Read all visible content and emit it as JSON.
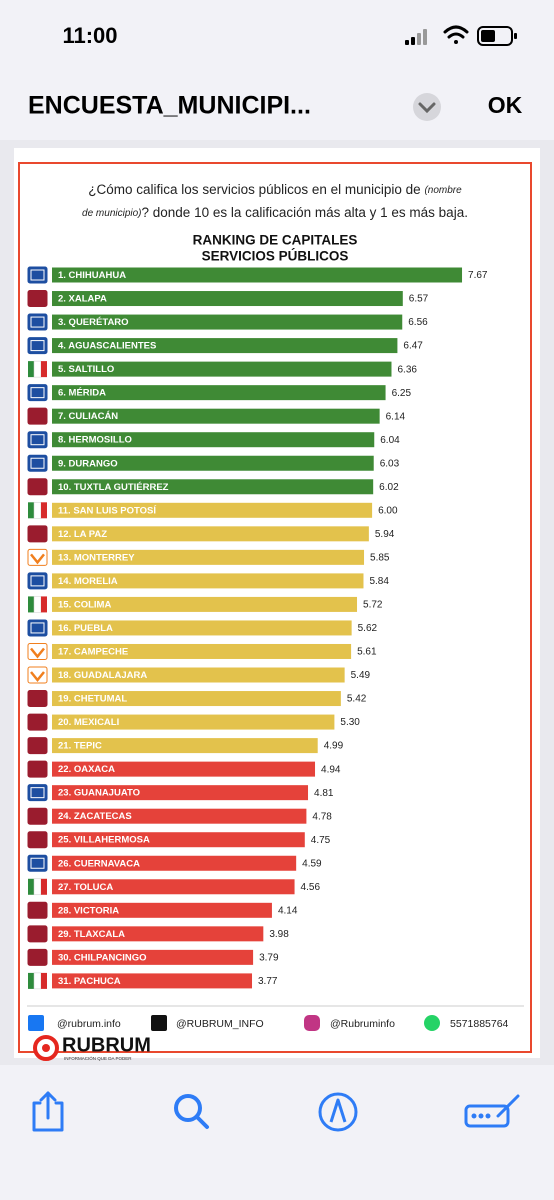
{
  "status_bar": {
    "time": "11:00"
  },
  "header": {
    "title": "ENCUESTA_MUNICIPI...",
    "done": "OK"
  },
  "question": {
    "part1": "¿Cómo califica los servicios públicos en el municipio de",
    "placeholder1": "(nombre",
    "placeholder2": "de municipio)",
    "part2": "? donde 10 es la calificación más alta y 1 es más baja."
  },
  "chart_data": {
    "type": "bar",
    "title": [
      "RANKING DE CAPITALES",
      "SERVICIOS PÚBLICOS"
    ],
    "categories": [
      "1. CHIHUAHUA",
      "2. XALAPA",
      "3. QUERÉTARO",
      "4. AGUASCALIENTES",
      "5. SALTILLO",
      "6. MÉRIDA",
      "7. CULIACÁN",
      "8. HERMOSILLO",
      "9. DURANGO",
      "10. TUXTLA GUTIÉRREZ",
      "11. SAN LUIS POTOSÍ",
      "12. LA PAZ",
      "13. MONTERREY",
      "14. MORELIA",
      "15. COLIMA",
      "16. PUEBLA",
      "17. CAMPECHE",
      "18. GUADALAJARA",
      "19. CHETUMAL",
      "20. MEXICALI",
      "21. TEPIC",
      "22. OAXACA",
      "23. GUANAJUATO",
      "24. ZACATECAS",
      "25. VILLAHERMOSA",
      "26. CUERNAVACA",
      "27. TOLUCA",
      "28. VICTORIA",
      "29. TLAXCALA",
      "30. CHILPANCINGO",
      "31. PACHUCA"
    ],
    "values": [
      7.67,
      6.57,
      6.56,
      6.47,
      6.36,
      6.25,
      6.14,
      6.04,
      6.03,
      6.02,
      6.0,
      5.94,
      5.85,
      5.84,
      5.72,
      5.62,
      5.61,
      5.49,
      5.42,
      5.3,
      4.99,
      4.94,
      4.81,
      4.78,
      4.75,
      4.59,
      4.56,
      4.14,
      3.98,
      3.79,
      3.77
    ],
    "value_labels": [
      "7.67",
      "6.57",
      "6.56",
      "6.47",
      "6.36",
      "6.25",
      "6.14",
      "6.04",
      "6.03",
      "6.02",
      "6.00",
      "5.94",
      "5.85",
      "5.84",
      "5.72",
      "5.62",
      "5.61",
      "5.49",
      "5.42",
      "5.30",
      "4.99",
      "4.94",
      "4.81",
      "4.78",
      "4.75",
      "4.59",
      "4.56",
      "4.14",
      "3.98",
      "3.79",
      "3.77"
    ],
    "colors": [
      "#3f8a35",
      "#3f8a35",
      "#3f8a35",
      "#3f8a35",
      "#3f8a35",
      "#3f8a35",
      "#3f8a35",
      "#3f8a35",
      "#3f8a35",
      "#3f8a35",
      "#e3c24c",
      "#e3c24c",
      "#e3c24c",
      "#e3c24c",
      "#e3c24c",
      "#e3c24c",
      "#e3c24c",
      "#e3c24c",
      "#e3c24c",
      "#e3c24c",
      "#e3c24c",
      "#e5423a",
      "#e5423a",
      "#e5423a",
      "#e5423a",
      "#e5423a",
      "#e5423a",
      "#e5423a",
      "#e5423a",
      "#e5423a",
      "#e5423a"
    ]
  },
  "footer": {
    "facebook": "@rubrum.info",
    "x": "@RUBRUM_INFO",
    "instagram": "@Rubruminfo",
    "whatsapp": "5571885764",
    "brand": "RUBRUM",
    "tagline": "INFORMACIÓN QUE DA PODER"
  }
}
